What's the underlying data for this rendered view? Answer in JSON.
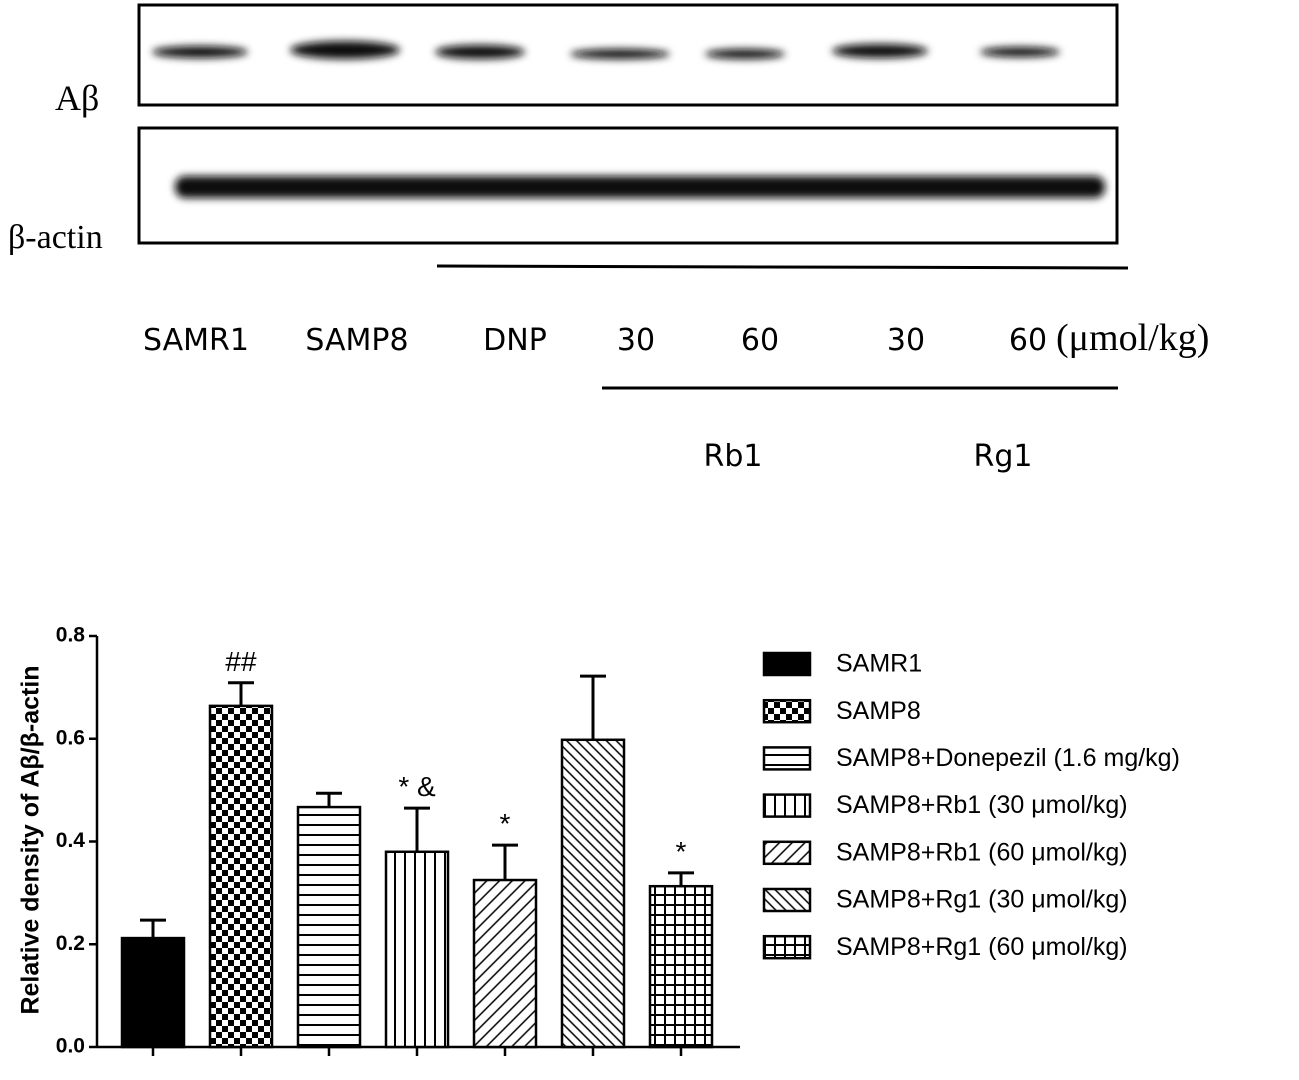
{
  "blot": {
    "rows": [
      "Aβ",
      "β-actin"
    ],
    "lanes": [
      "SAMR1",
      "SAMP8",
      "DNP",
      "30",
      "60",
      "30",
      "60"
    ],
    "unit": "(μmol/kg)",
    "groups": [
      "Rb1",
      "Rg1"
    ]
  },
  "chart_data": {
    "type": "bar",
    "y_label": "Relative density of Aβ/β-actin",
    "categories": [
      "SAMR1",
      "SAMP8",
      "SAMP8+Donepezil (1.6 mg/kg)",
      "SAMP8+Rb1 (30 μmol/kg)",
      "SAMP8+Rb1 (60 μmol/kg)",
      "SAMP8+Rg1 (30 μmol/kg)",
      "SAMP8+Rg1 (60 μmol/kg)"
    ],
    "values": [
      0.212,
      0.664,
      0.467,
      0.38,
      0.325,
      0.598,
      0.313
    ],
    "errors": [
      0.035,
      0.045,
      0.027,
      0.085,
      0.068,
      0.124,
      0.026
    ],
    "annotations": [
      null,
      "##",
      null,
      "* &",
      "*",
      null,
      "*"
    ],
    "patterns": [
      "solid",
      "checker",
      "hlines",
      "vlines",
      "diag-up",
      "diag-down",
      "grid"
    ],
    "color": "#000000",
    "ylim": [
      0,
      0.8
    ],
    "yticks": [
      {
        "value": 0,
        "label": "0.0"
      },
      0.2,
      0.4,
      0.6,
      0.8
    ],
    "legend": "right"
  }
}
